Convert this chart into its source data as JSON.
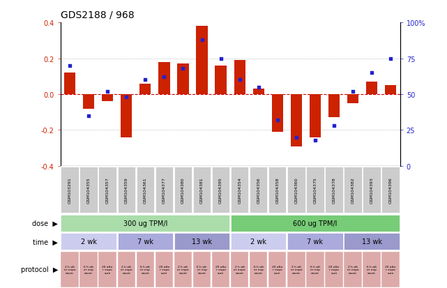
{
  "title": "GDS2188 / 968",
  "samples": [
    "GSM103291",
    "GSM104355",
    "GSM104357",
    "GSM104359",
    "GSM104361",
    "GSM104377",
    "GSM104380",
    "GSM104381",
    "GSM104395",
    "GSM104354",
    "GSM104356",
    "GSM104358",
    "GSM104360",
    "GSM104375",
    "GSM104378",
    "GSM104382",
    "GSM104393",
    "GSM104396"
  ],
  "log2_ratio": [
    0.12,
    -0.08,
    -0.04,
    -0.24,
    0.06,
    0.18,
    0.17,
    0.38,
    0.16,
    0.19,
    0.03,
    -0.21,
    -0.29,
    -0.24,
    -0.13,
    -0.05,
    0.07,
    0.05
  ],
  "percentile": [
    70,
    35,
    52,
    48,
    60,
    62,
    68,
    88,
    75,
    60,
    55,
    32,
    20,
    18,
    28,
    52,
    65,
    75
  ],
  "bar_color": "#cc2200",
  "dot_color": "#2222cc",
  "ylim": [
    -0.4,
    0.4
  ],
  "y2lim": [
    0,
    100
  ],
  "yticks": [
    -0.4,
    -0.2,
    0.0,
    0.2,
    0.4
  ],
  "y2ticks": [
    0,
    25,
    50,
    75,
    100
  ],
  "y2tick_labels": [
    "0",
    "25",
    "50",
    "75",
    "100%"
  ],
  "hline_color": "#cc0000",
  "dose_labels": [
    {
      "text": "300 ug TPM/l",
      "start": 0,
      "end": 8,
      "color": "#aaddaa"
    },
    {
      "text": "600 ug TPM/l",
      "start": 9,
      "end": 17,
      "color": "#77cc77"
    }
  ],
  "time_groups": [
    {
      "text": "2 wk",
      "start": 0,
      "end": 2,
      "color": "#ccccee"
    },
    {
      "text": "7 wk",
      "start": 3,
      "end": 5,
      "color": "#aaaadd"
    },
    {
      "text": "13 wk",
      "start": 6,
      "end": 8,
      "color": "#9999cc"
    },
    {
      "text": "2 wk",
      "start": 9,
      "end": 11,
      "color": "#ccccee"
    },
    {
      "text": "7 wk",
      "start": 12,
      "end": 14,
      "color": "#aaaadd"
    },
    {
      "text": "13 wk",
      "start": 15,
      "end": 17,
      "color": "#9999cc"
    }
  ],
  "protocol_color": "#ddaaaa",
  "bg_color": "#ffffff",
  "sample_box_color": "#cccccc",
  "tick_fontsize": 7,
  "label_fontsize": 7,
  "title_fontsize": 10
}
